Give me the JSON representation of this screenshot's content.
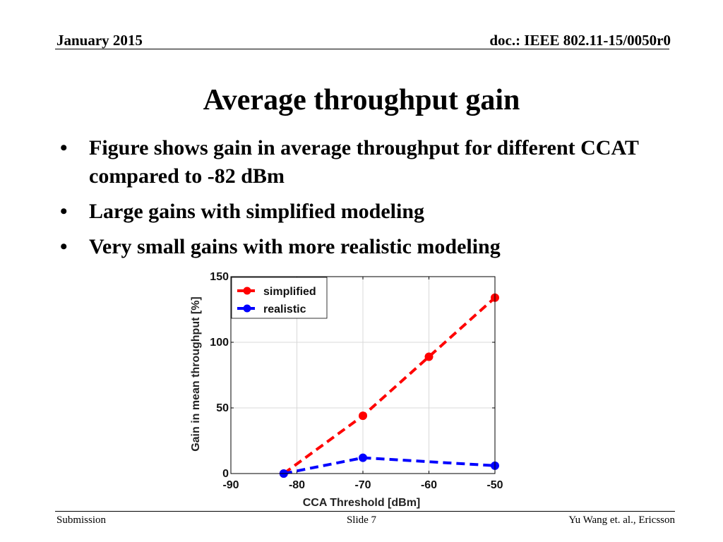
{
  "header": {
    "date": "January 2015",
    "doc": "doc.: IEEE 802.11-15/0050r0"
  },
  "slide": {
    "title": "Average throughput gain",
    "bullets": [
      "Figure shows gain in average throughput for different CCAT compared to -82 dBm",
      "Large gains with simplified modeling",
      "Very small gains with more realistic modeling"
    ]
  },
  "chart_data": {
    "type": "line",
    "xlabel": "CCA Threshold [dBm]",
    "ylabel": "Gain in mean throughput [%]",
    "xlim": [
      -90,
      -50
    ],
    "ylim": [
      0,
      150
    ],
    "xticks": [
      -90,
      -80,
      -70,
      -60,
      -50
    ],
    "yticks": [
      0,
      50,
      100,
      150
    ],
    "grid": true,
    "legend": "top-left",
    "series": [
      {
        "name": "simplified",
        "color": "#ff0000",
        "x": [
          -82,
          -70,
          -60,
          -50
        ],
        "y": [
          0,
          44,
          89,
          134
        ]
      },
      {
        "name": "realistic",
        "color": "#0000ff",
        "x": [
          -82,
          -70,
          -50
        ],
        "y": [
          0,
          12,
          6
        ]
      }
    ]
  },
  "footer": {
    "left": "Submission",
    "center": "Slide 7",
    "right": "Yu Wang et. al., Ericsson"
  }
}
